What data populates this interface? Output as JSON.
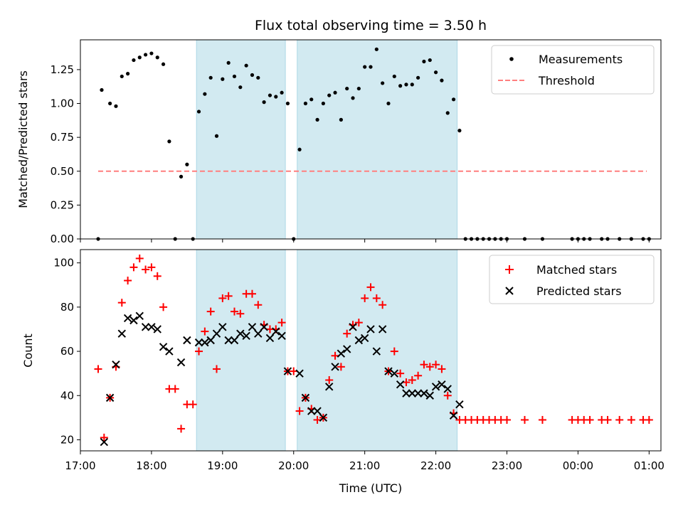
{
  "chart_data": [
    {
      "type": "scatter",
      "title": "Flux total observing time = 3.50 h",
      "xlabel": "",
      "ylabel": "Matched/Predicted stars",
      "xlim": [
        "17:00",
        "01:10"
      ],
      "ylim": [
        0,
        1.47
      ],
      "yticks": [
        0.0,
        0.25,
        0.5,
        0.75,
        1.0,
        1.25
      ],
      "ytick_labels": [
        "0.00",
        "0.25",
        "0.50",
        "0.75",
        "1.00",
        "1.25"
      ],
      "legend_position": "top-right",
      "shaded_intervals": [
        [
          "18:38",
          "19:53"
        ],
        [
          "20:03",
          "22:18"
        ]
      ],
      "shade_color": "#add8e6",
      "series": [
        {
          "name": "Measurements",
          "marker": "dot",
          "color": "#000000",
          "points": [
            [
              "17:15",
              0.0
            ],
            [
              "17:18",
              1.1
            ],
            [
              "17:25",
              1.0
            ],
            [
              "17:30",
              0.98
            ],
            [
              "17:35",
              1.2
            ],
            [
              "17:40",
              1.22
            ],
            [
              "17:45",
              1.32
            ],
            [
              "17:50",
              1.34
            ],
            [
              "17:55",
              1.36
            ],
            [
              "18:00",
              1.37
            ],
            [
              "18:05",
              1.34
            ],
            [
              "18:10",
              1.29
            ],
            [
              "18:15",
              0.72
            ],
            [
              "18:20",
              0.0
            ],
            [
              "18:25",
              0.46
            ],
            [
              "18:30",
              0.55
            ],
            [
              "18:35",
              0.0
            ],
            [
              "18:40",
              0.94
            ],
            [
              "18:45",
              1.07
            ],
            [
              "18:50",
              1.19
            ],
            [
              "18:55",
              0.76
            ],
            [
              "19:00",
              1.18
            ],
            [
              "19:05",
              1.3
            ],
            [
              "19:10",
              1.2
            ],
            [
              "19:15",
              1.12
            ],
            [
              "19:20",
              1.28
            ],
            [
              "19:25",
              1.21
            ],
            [
              "19:30",
              1.19
            ],
            [
              "19:35",
              1.01
            ],
            [
              "19:40",
              1.06
            ],
            [
              "19:45",
              1.05
            ],
            [
              "19:50",
              1.08
            ],
            [
              "19:55",
              1.0
            ],
            [
              "20:00",
              0.0
            ],
            [
              "20:05",
              0.66
            ],
            [
              "20:10",
              1.0
            ],
            [
              "20:15",
              1.03
            ],
            [
              "20:20",
              0.88
            ],
            [
              "20:25",
              1.0
            ],
            [
              "20:30",
              1.06
            ],
            [
              "20:35",
              1.08
            ],
            [
              "20:40",
              0.88
            ],
            [
              "20:45",
              1.11
            ],
            [
              "20:50",
              1.04
            ],
            [
              "20:55",
              1.11
            ],
            [
              "21:00",
              1.27
            ],
            [
              "21:05",
              1.27
            ],
            [
              "21:10",
              1.4
            ],
            [
              "21:15",
              1.15
            ],
            [
              "21:20",
              1.0
            ],
            [
              "21:25",
              1.2
            ],
            [
              "21:30",
              1.13
            ],
            [
              "21:35",
              1.14
            ],
            [
              "21:40",
              1.14
            ],
            [
              "21:45",
              1.19
            ],
            [
              "21:50",
              1.31
            ],
            [
              "21:55",
              1.32
            ],
            [
              "22:00",
              1.23
            ],
            [
              "22:05",
              1.17
            ],
            [
              "22:10",
              0.93
            ],
            [
              "22:15",
              1.03
            ],
            [
              "22:20",
              0.8
            ],
            [
              "22:25",
              0.0
            ],
            [
              "22:30",
              0.0
            ],
            [
              "22:35",
              0.0
            ],
            [
              "22:40",
              0.0
            ],
            [
              "22:45",
              0.0
            ],
            [
              "22:50",
              0.0
            ],
            [
              "22:55",
              0.0
            ],
            [
              "23:00",
              0.0
            ],
            [
              "23:15",
              0.0
            ],
            [
              "23:30",
              0.0
            ],
            [
              "23:55",
              0.0
            ],
            [
              "00:00",
              0.0
            ],
            [
              "00:05",
              0.0
            ],
            [
              "00:10",
              0.0
            ],
            [
              "00:20",
              0.0
            ],
            [
              "00:25",
              0.0
            ],
            [
              "00:35",
              0.0
            ],
            [
              "00:45",
              0.0
            ],
            [
              "00:55",
              0.0
            ],
            [
              "01:00",
              0.0
            ]
          ]
        },
        {
          "name": "Threshold",
          "marker": "dashed-line",
          "color": "#ff7f7f",
          "points": [
            [
              "17:15",
              0.5
            ],
            [
              "00:58",
              0.5
            ]
          ]
        }
      ]
    },
    {
      "type": "scatter",
      "title": "",
      "xlabel": "Time (UTC)",
      "ylabel": "Count",
      "xlim": [
        "17:00",
        "01:10"
      ],
      "ylim": [
        15,
        106
      ],
      "yticks": [
        20,
        40,
        60,
        80,
        100
      ],
      "ytick_labels": [
        "20",
        "40",
        "60",
        "80",
        "100"
      ],
      "xticks": [
        "17:00",
        "18:00",
        "19:00",
        "20:00",
        "21:00",
        "22:00",
        "23:00",
        "00:00",
        "01:00"
      ],
      "legend_position": "top-right",
      "shaded_intervals": [
        [
          "18:38",
          "19:53"
        ],
        [
          "20:03",
          "22:18"
        ]
      ],
      "shade_color": "#add8e6",
      "series": [
        {
          "name": "Matched stars",
          "marker": "plus",
          "color": "#ff0000",
          "points": [
            [
              "17:15",
              52
            ],
            [
              "17:20",
              21
            ],
            [
              "17:25",
              39
            ],
            [
              "17:30",
              53
            ],
            [
              "17:35",
              82
            ],
            [
              "17:40",
              92
            ],
            [
              "17:45",
              98
            ],
            [
              "17:50",
              102
            ],
            [
              "17:55",
              97
            ],
            [
              "18:00",
              98
            ],
            [
              "18:05",
              94
            ],
            [
              "18:10",
              80
            ],
            [
              "18:15",
              43
            ],
            [
              "18:20",
              43
            ],
            [
              "18:25",
              25
            ],
            [
              "18:30",
              36
            ],
            [
              "18:35",
              36
            ],
            [
              "18:40",
              60
            ],
            [
              "18:45",
              69
            ],
            [
              "18:50",
              78
            ],
            [
              "18:55",
              52
            ],
            [
              "19:00",
              84
            ],
            [
              "19:05",
              85
            ],
            [
              "19:10",
              78
            ],
            [
              "19:15",
              77
            ],
            [
              "19:20",
              86
            ],
            [
              "19:25",
              86
            ],
            [
              "19:30",
              81
            ],
            [
              "19:35",
              72
            ],
            [
              "19:40",
              70
            ],
            [
              "19:45",
              70
            ],
            [
              "19:50",
              73
            ],
            [
              "19:55",
              51
            ],
            [
              "20:00",
              51
            ],
            [
              "20:05",
              33
            ],
            [
              "20:10",
              39
            ],
            [
              "20:15",
              34
            ],
            [
              "20:20",
              29
            ],
            [
              "20:25",
              30
            ],
            [
              "20:30",
              47
            ],
            [
              "20:35",
              58
            ],
            [
              "20:40",
              53
            ],
            [
              "20:45",
              68
            ],
            [
              "20:50",
              72
            ],
            [
              "20:55",
              73
            ],
            [
              "21:00",
              84
            ],
            [
              "21:05",
              89
            ],
            [
              "21:10",
              84
            ],
            [
              "21:15",
              81
            ],
            [
              "21:20",
              51
            ],
            [
              "21:25",
              60
            ],
            [
              "21:30",
              50
            ],
            [
              "21:35",
              46
            ],
            [
              "21:40",
              47
            ],
            [
              "21:45",
              49
            ],
            [
              "21:50",
              54
            ],
            [
              "21:55",
              53
            ],
            [
              "22:00",
              54
            ],
            [
              "22:05",
              52
            ],
            [
              "22:10",
              40
            ],
            [
              "22:15",
              32
            ],
            [
              "22:20",
              29
            ],
            [
              "22:25",
              29
            ],
            [
              "22:30",
              29
            ],
            [
              "22:35",
              29
            ],
            [
              "22:40",
              29
            ],
            [
              "22:45",
              29
            ],
            [
              "22:50",
              29
            ],
            [
              "22:55",
              29
            ],
            [
              "23:00",
              29
            ],
            [
              "23:15",
              29
            ],
            [
              "23:30",
              29
            ],
            [
              "23:55",
              29
            ],
            [
              "00:00",
              29
            ],
            [
              "00:05",
              29
            ],
            [
              "00:10",
              29
            ],
            [
              "00:20",
              29
            ],
            [
              "00:25",
              29
            ],
            [
              "00:35",
              29
            ],
            [
              "00:45",
              29
            ],
            [
              "00:55",
              29
            ],
            [
              "01:00",
              29
            ]
          ]
        },
        {
          "name": "Predicted stars",
          "marker": "x",
          "color": "#000000",
          "points": [
            [
              "17:20",
              19
            ],
            [
              "17:25",
              39
            ],
            [
              "17:30",
              54
            ],
            [
              "17:35",
              68
            ],
            [
              "17:40",
              75
            ],
            [
              "17:45",
              74
            ],
            [
              "17:50",
              76
            ],
            [
              "17:55",
              71
            ],
            [
              "18:00",
              71
            ],
            [
              "18:05",
              70
            ],
            [
              "18:10",
              62
            ],
            [
              "18:15",
              60
            ],
            [
              "18:25",
              55
            ],
            [
              "18:30",
              65
            ],
            [
              "18:40",
              64
            ],
            [
              "18:45",
              64
            ],
            [
              "18:50",
              65
            ],
            [
              "18:55",
              68
            ],
            [
              "19:00",
              71
            ],
            [
              "19:05",
              65
            ],
            [
              "19:10",
              65
            ],
            [
              "19:15",
              68
            ],
            [
              "19:20",
              67
            ],
            [
              "19:25",
              71
            ],
            [
              "19:30",
              68
            ],
            [
              "19:35",
              71
            ],
            [
              "19:40",
              66
            ],
            [
              "19:45",
              69
            ],
            [
              "19:50",
              67
            ],
            [
              "19:55",
              51
            ],
            [
              "20:05",
              50
            ],
            [
              "20:10",
              39
            ],
            [
              "20:15",
              33
            ],
            [
              "20:20",
              33
            ],
            [
              "20:25",
              30
            ],
            [
              "20:30",
              44
            ],
            [
              "20:35",
              53
            ],
            [
              "20:40",
              59
            ],
            [
              "20:45",
              61
            ],
            [
              "20:50",
              71
            ],
            [
              "20:55",
              65
            ],
            [
              "21:00",
              66
            ],
            [
              "21:05",
              70
            ],
            [
              "21:10",
              60
            ],
            [
              "21:15",
              70
            ],
            [
              "21:20",
              51
            ],
            [
              "21:25",
              50
            ],
            [
              "21:30",
              45
            ],
            [
              "21:35",
              41
            ],
            [
              "21:40",
              41
            ],
            [
              "21:45",
              41
            ],
            [
              "21:50",
              41
            ],
            [
              "21:55",
              40
            ],
            [
              "22:00",
              44
            ],
            [
              "22:05",
              45
            ],
            [
              "22:10",
              43
            ],
            [
              "22:15",
              31
            ],
            [
              "22:20",
              36
            ]
          ]
        }
      ]
    }
  ]
}
